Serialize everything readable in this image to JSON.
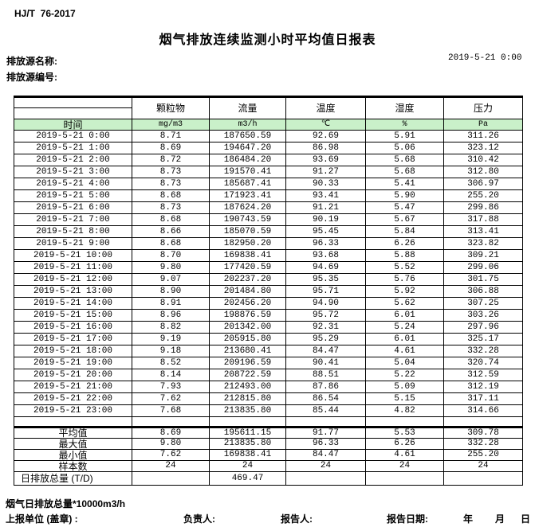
{
  "header": {
    "standard_code": "HJ/T  76-2017",
    "title": "烟气排放连续监测小时平均值日报表",
    "source_name_label": "排放源名称:",
    "source_code_label": "排放源编号:",
    "datetime": "2019-5-21 0:00"
  },
  "table": {
    "time_header": "时间",
    "columns": [
      {
        "name": "颗粒物",
        "unit": "mg/m3"
      },
      {
        "name": "流量",
        "unit": "m3/h"
      },
      {
        "name": "温度",
        "unit": "℃"
      },
      {
        "name": "湿度",
        "unit": "%"
      },
      {
        "name": "压力",
        "unit": "Pa"
      }
    ],
    "rows": [
      {
        "time": "2019-5-21 0:00",
        "values": [
          "8.71",
          "187650.59",
          "92.69",
          "5.91",
          "311.26"
        ]
      },
      {
        "time": "2019-5-21 1:00",
        "values": [
          "8.69",
          "194647.20",
          "86.98",
          "5.06",
          "323.12"
        ]
      },
      {
        "time": "2019-5-21 2:00",
        "values": [
          "8.72",
          "186484.20",
          "93.69",
          "5.68",
          "310.42"
        ]
      },
      {
        "time": "2019-5-21 3:00",
        "values": [
          "8.73",
          "191570.41",
          "91.27",
          "5.68",
          "312.80"
        ]
      },
      {
        "time": "2019-5-21 4:00",
        "values": [
          "8.73",
          "185687.41",
          "90.33",
          "5.41",
          "306.97"
        ]
      },
      {
        "time": "2019-5-21 5:00",
        "values": [
          "8.68",
          "171923.41",
          "93.41",
          "5.90",
          "255.20"
        ]
      },
      {
        "time": "2019-5-21 6:00",
        "values": [
          "8.73",
          "187624.20",
          "91.21",
          "5.47",
          "299.86"
        ]
      },
      {
        "time": "2019-5-21 7:00",
        "values": [
          "8.68",
          "190743.59",
          "90.19",
          "5.67",
          "317.88"
        ]
      },
      {
        "time": "2019-5-21 8:00",
        "values": [
          "8.66",
          "185070.59",
          "95.45",
          "5.84",
          "313.41"
        ]
      },
      {
        "time": "2019-5-21 9:00",
        "values": [
          "8.68",
          "182950.20",
          "96.33",
          "6.26",
          "323.82"
        ]
      },
      {
        "time": "2019-5-21 10:00",
        "values": [
          "8.70",
          "169838.41",
          "93.68",
          "5.88",
          "309.21"
        ]
      },
      {
        "time": "2019-5-21 11:00",
        "values": [
          "9.80",
          "177420.59",
          "94.69",
          "5.52",
          "299.06"
        ]
      },
      {
        "time": "2019-5-21 12:00",
        "values": [
          "9.07",
          "202237.20",
          "95.35",
          "5.76",
          "301.75"
        ]
      },
      {
        "time": "2019-5-21 13:00",
        "values": [
          "8.90",
          "201484.80",
          "95.71",
          "5.92",
          "306.88"
        ]
      },
      {
        "time": "2019-5-21 14:00",
        "values": [
          "8.91",
          "202456.20",
          "94.90",
          "5.62",
          "307.25"
        ]
      },
      {
        "time": "2019-5-21 15:00",
        "values": [
          "8.96",
          "198876.59",
          "95.72",
          "6.01",
          "303.26"
        ]
      },
      {
        "time": "2019-5-21 16:00",
        "values": [
          "8.82",
          "201342.00",
          "92.31",
          "5.24",
          "297.96"
        ]
      },
      {
        "time": "2019-5-21 17:00",
        "values": [
          "9.19",
          "205915.80",
          "95.29",
          "6.01",
          "325.17"
        ]
      },
      {
        "time": "2019-5-21 18:00",
        "values": [
          "9.18",
          "213680.41",
          "84.47",
          "4.61",
          "332.28"
        ]
      },
      {
        "time": "2019-5-21 19:00",
        "values": [
          "8.52",
          "209196.59",
          "90.41",
          "5.04",
          "320.74"
        ]
      },
      {
        "time": "2019-5-21 20:00",
        "values": [
          "8.14",
          "208722.59",
          "88.51",
          "5.22",
          "312.59"
        ]
      },
      {
        "time": "2019-5-21 21:00",
        "values": [
          "7.93",
          "212493.00",
          "87.86",
          "5.09",
          "312.19"
        ]
      },
      {
        "time": "2019-5-21 22:00",
        "values": [
          "7.62",
          "212815.80",
          "86.54",
          "5.15",
          "317.11"
        ]
      },
      {
        "time": "2019-5-21 23:00",
        "values": [
          "7.68",
          "213835.80",
          "85.44",
          "4.82",
          "314.66"
        ]
      }
    ],
    "summary": [
      {
        "label": "平均值",
        "values": [
          "8.69",
          "195611.15",
          "91.77",
          "5.53",
          "309.78"
        ]
      },
      {
        "label": "最大值",
        "values": [
          "9.80",
          "213835.80",
          "96.33",
          "6.26",
          "332.28"
        ]
      },
      {
        "label": "最小值",
        "values": [
          "7.62",
          "169838.41",
          "84.47",
          "4.61",
          "255.20"
        ]
      },
      {
        "label": "样本数",
        "values": [
          "24",
          "24",
          "24",
          "24",
          "24"
        ]
      },
      {
        "label": "日排放总量 (T/D)",
        "values": [
          "",
          "469.47",
          "",
          "",
          ""
        ]
      }
    ]
  },
  "footer": {
    "note": "烟气日排放总量*10000m3/h",
    "report_unit_label": "上报单位 (盖章) :",
    "responsible_label": "负责人:",
    "reporter_label": "报告人:",
    "report_date_label": "报告日期:",
    "year_label": "年",
    "month_label": "月",
    "day_label": "日"
  },
  "colors": {
    "unit_row_bg": "#c9f0c9",
    "border": "#000000"
  }
}
